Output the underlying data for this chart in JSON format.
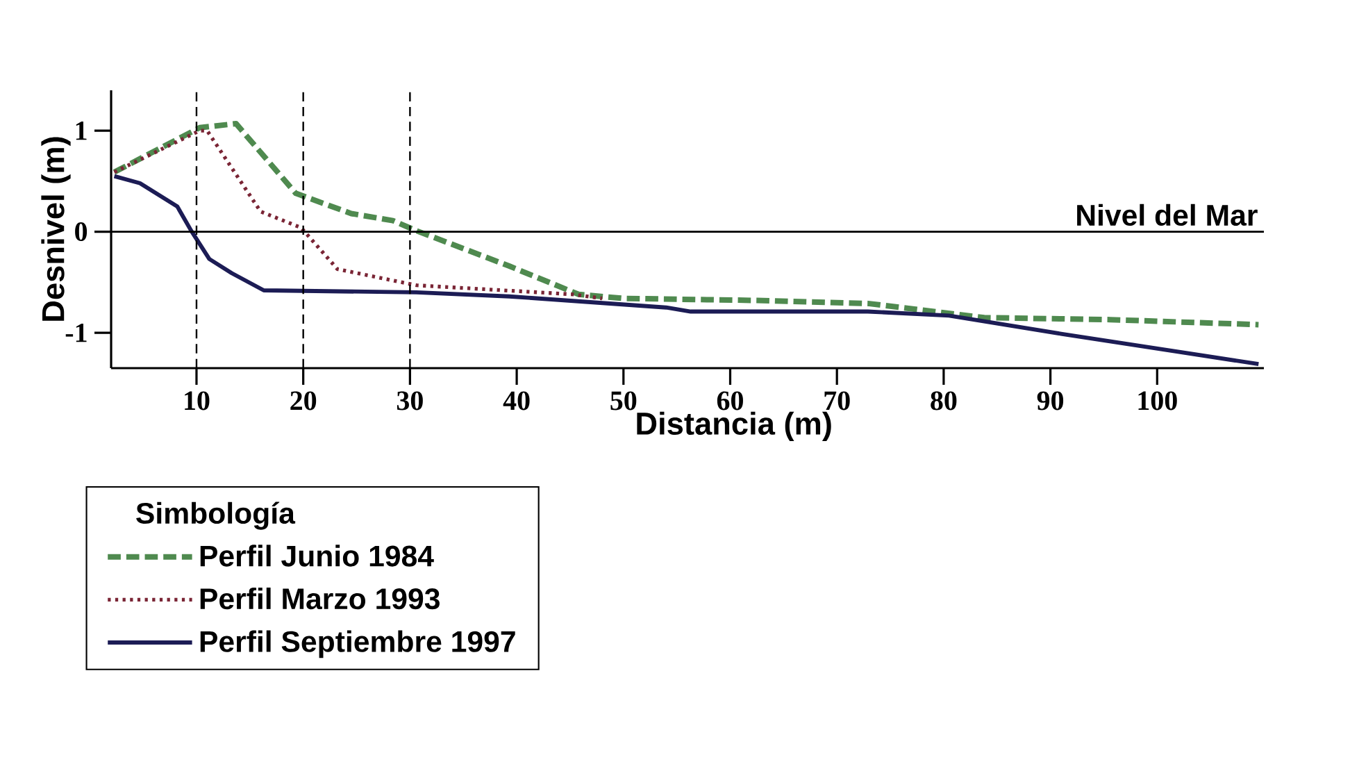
{
  "chart_data": {
    "type": "line",
    "xlabel": "Distancia (m)",
    "ylabel": "Desnivel (m)",
    "legend_title": "Simbología",
    "legend": "bottom left",
    "xlim": [
      2,
      110
    ],
    "ylim": [
      -1.35,
      1.4
    ],
    "xticks": [
      10,
      20,
      30,
      40,
      50,
      60,
      70,
      80,
      90,
      100
    ],
    "yticks": [
      -1,
      0,
      1
    ],
    "grid": false,
    "marker": "none",
    "ref_lines": [
      {
        "axis": "y",
        "value": 0,
        "label": "Nivel del Mar",
        "color": "#000000",
        "line_style": "solid"
      },
      {
        "axis": "x",
        "value": 10,
        "label": null,
        "color": "#000000",
        "line_style": "dashed"
      },
      {
        "axis": "x",
        "value": 20,
        "label": null,
        "color": "#000000",
        "line_style": "dashed"
      },
      {
        "axis": "x",
        "value": 30,
        "label": null,
        "color": "#000000",
        "line_style": "dashed"
      }
    ],
    "series": [
      {
        "name": "Perfil Junio 1984",
        "color": "#4f8a4f",
        "line_style": "dashed",
        "x": [
          2.3,
          10.3,
          13.7,
          19.3,
          24.5,
          28.4,
          30.6,
          39.3,
          45.8,
          50,
          62.5,
          72.9,
          83.8,
          95.6,
          109.5
        ],
        "values": [
          0.59,
          1.03,
          1.07,
          0.38,
          0.18,
          0.11,
          0.01,
          -0.34,
          -0.62,
          -0.66,
          -0.68,
          -0.71,
          -0.85,
          -0.87,
          -0.92
        ]
      },
      {
        "name": "Perfil Marzo 1993",
        "color": "#7a2535",
        "line_style": "dotted",
        "x": [
          2.3,
          10.3,
          11,
          16,
          19.8,
          23.2,
          30.6,
          45.3,
          48
        ],
        "values": [
          0.59,
          1.0,
          1.0,
          0.2,
          0.04,
          -0.37,
          -0.53,
          -0.62,
          -0.66
        ]
      },
      {
        "name": "Perfil Septiembre 1997",
        "color": "#1c1c55",
        "line_style": "solid",
        "x": [
          2.3,
          4.7,
          8.2,
          9.5,
          11.2,
          13.3,
          16.3,
          30.6,
          39.3,
          54,
          56.3,
          72.9,
          80.5,
          91,
          109.5
        ],
        "values": [
          0.55,
          0.48,
          0.25,
          0.01,
          -0.27,
          -0.41,
          -0.58,
          -0.6,
          -0.64,
          -0.75,
          -0.79,
          -0.79,
          -0.83,
          -1.01,
          -1.31
        ]
      }
    ]
  }
}
